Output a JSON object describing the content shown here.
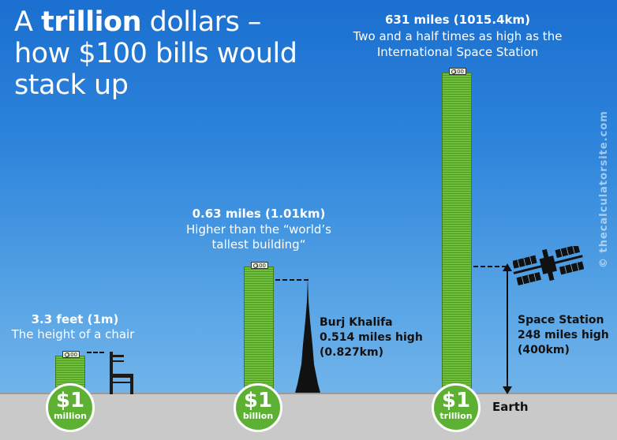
{
  "title": {
    "prefix": "A ",
    "bold": "trillion",
    "rest": " dollars – how $100 bills would stack up"
  },
  "stacks": [
    {
      "height_label": "3.3 feet (1m)",
      "comparison": "The height of a chair",
      "bill_label": "100",
      "coin_amount": "$1",
      "coin_unit": "million"
    },
    {
      "height_label": "0.63 miles (1.01km)",
      "comparison": "Higher than the “world’s tallest building“",
      "bill_label": "100",
      "coin_amount": "$1",
      "coin_unit": "billion"
    },
    {
      "height_label": "631 miles (1015.4km)",
      "comparison": "Two and a half times as high as the International Space Station",
      "bill_label": "100",
      "coin_amount": "$1",
      "coin_unit": "trillion"
    }
  ],
  "burj": {
    "name": "Burj Khalifa",
    "height": "0.514 miles high",
    "metric": "(0.827km)"
  },
  "station": {
    "name": "Space Station",
    "height": "248 miles high",
    "metric": "(400km)"
  },
  "ground_label": "Earth",
  "watermark": "© thecalculatorsite.com",
  "colors": {
    "sky_top": "#1a6fd0",
    "sky_bottom": "#7dbbec",
    "money_green": "#5cb032",
    "ground": "#c9c9c9"
  },
  "icons": [
    "chair-icon",
    "burj-khalifa-icon",
    "space-station-icon",
    "dollar-bill-icon"
  ]
}
